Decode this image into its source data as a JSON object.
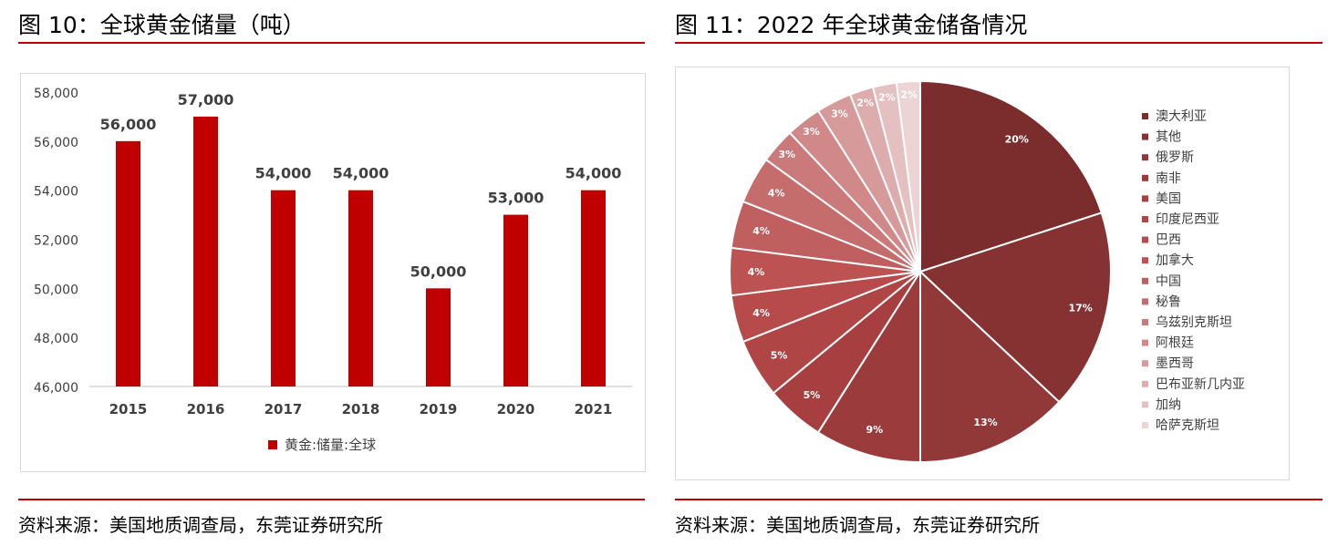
{
  "left": {
    "title": "图 10：全球黄金储量（吨）",
    "source": "资料来源：美国地质调查局，东莞证券研究所"
  },
  "right": {
    "title": "图 11：2022 年全球黄金储备情况",
    "source": "资料来源：美国地质调查局，东莞证券研究所"
  },
  "chart_data": [
    {
      "type": "bar",
      "categories": [
        "2015",
        "2016",
        "2017",
        "2018",
        "2019",
        "2020",
        "2021"
      ],
      "values": [
        56000,
        57000,
        54000,
        54000,
        50000,
        53000,
        54000
      ],
      "data_labels": [
        "56,000",
        "57,000",
        "54,000",
        "54,000",
        "50,000",
        "53,000",
        "54,000"
      ],
      "yticks": [
        "58,000",
        "56,000",
        "54,000",
        "52,000",
        "50,000",
        "48,000",
        "46,000"
      ],
      "ytick_values": [
        58000,
        56000,
        54000,
        52000,
        50000,
        48000,
        46000
      ],
      "ylim": [
        46000,
        58000
      ],
      "legend": "黄金:储量:全球",
      "legend_position": "bottom",
      "color": "#c00000",
      "grid": false
    },
    {
      "type": "pie",
      "categories": [
        "澳大利亚",
        "其他",
        "俄罗斯",
        "南非",
        "美国",
        "印度尼西亚",
        "巴西",
        "加拿大",
        "中国",
        "秘鲁",
        "乌兹别克斯坦",
        "阿根廷",
        "墨西哥",
        "巴布亚新几内亚",
        "加纳",
        "哈萨克斯坦"
      ],
      "values": [
        20,
        17,
        13,
        9,
        5,
        5,
        4,
        4,
        4,
        4,
        3,
        3,
        3,
        2,
        2,
        2
      ],
      "labels": [
        "20%",
        "17%",
        "13%",
        "9%",
        "5%",
        "5%",
        "4%",
        "4%",
        "4%",
        "4%",
        "3%",
        "3%",
        "3%",
        "2%",
        "2%",
        "2%"
      ],
      "colors": [
        "#7b2c2c",
        "#863233",
        "#913839",
        "#9b3b3c",
        "#a73f40",
        "#b04545",
        "#b74a4a",
        "#bd5252",
        "#c05f5f",
        "#c56c6c",
        "#ca7a7a",
        "#d08888",
        "#d69a9a",
        "#ddadad",
        "#e4c0c0",
        "#ecd4d4"
      ],
      "legend_position": "right"
    }
  ]
}
